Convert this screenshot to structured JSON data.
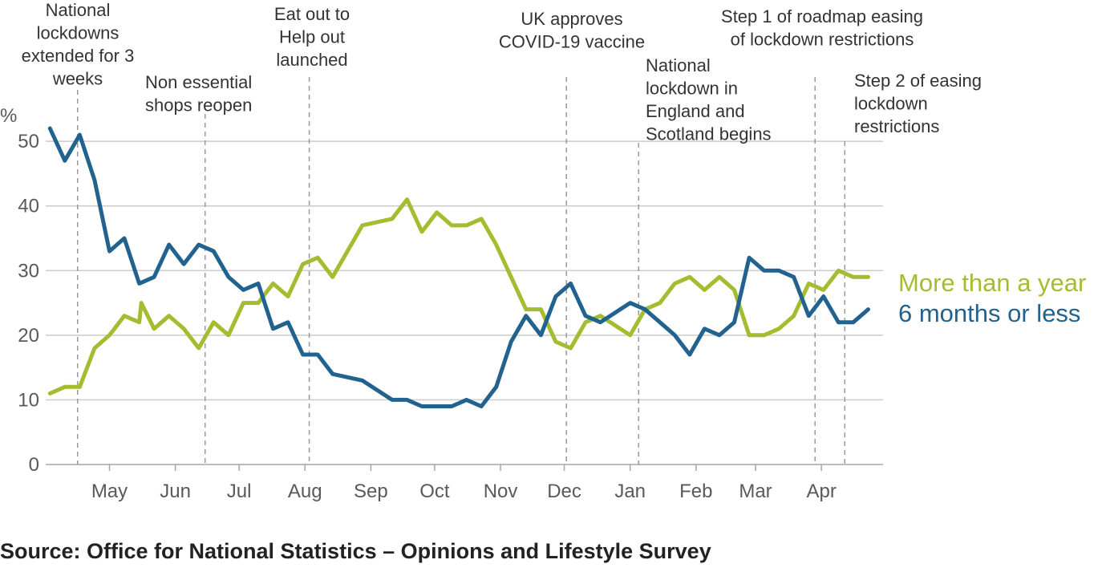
{
  "chart_data": {
    "type": "line",
    "ylabel": "%",
    "ylim": [
      0,
      52
    ],
    "y_ticks": [
      0,
      10,
      20,
      30,
      40,
      50
    ],
    "x_start": "2020-04-01",
    "x_end": "2021-04-30",
    "month_ticks": [
      {
        "label": "May",
        "date": "2020-05-01"
      },
      {
        "label": "Jun",
        "date": "2020-06-01"
      },
      {
        "label": "Jul",
        "date": "2020-07-01"
      },
      {
        "label": "Aug",
        "date": "2020-08-01"
      },
      {
        "label": "Sep",
        "date": "2020-09-01"
      },
      {
        "label": "Oct",
        "date": "2020-10-01"
      },
      {
        "label": "Nov",
        "date": "2020-11-01"
      },
      {
        "label": "Dec",
        "date": "2020-12-01"
      },
      {
        "label": "Jan",
        "date": "2021-01-01"
      },
      {
        "label": "Feb",
        "date": "2021-02-01"
      },
      {
        "label": "Mar",
        "date": "2021-03-01"
      },
      {
        "label": "Apr",
        "date": "2021-04-01"
      }
    ],
    "grid": true,
    "legend_position": "right",
    "series": [
      {
        "name": "More than a year",
        "color": "#a3bd31",
        "points": [
          [
            "2020-04-03",
            11
          ],
          [
            "2020-04-10",
            12
          ],
          [
            "2020-04-17",
            12
          ],
          [
            "2020-04-24",
            18
          ],
          [
            "2020-05-01",
            20
          ],
          [
            "2020-05-08",
            23
          ],
          [
            "2020-05-15",
            22
          ],
          [
            "2020-05-16",
            25
          ],
          [
            "2020-05-22",
            21
          ],
          [
            "2020-05-29",
            23
          ],
          [
            "2020-06-05",
            21
          ],
          [
            "2020-06-12",
            18
          ],
          [
            "2020-06-19",
            22
          ],
          [
            "2020-06-26",
            20
          ],
          [
            "2020-07-03",
            25
          ],
          [
            "2020-07-10",
            25
          ],
          [
            "2020-07-17",
            28
          ],
          [
            "2020-07-24",
            26
          ],
          [
            "2020-07-31",
            31
          ],
          [
            "2020-08-07",
            32
          ],
          [
            "2020-08-14",
            29
          ],
          [
            "2020-08-28",
            37
          ],
          [
            "2020-09-11",
            38
          ],
          [
            "2020-09-18",
            41
          ],
          [
            "2020-09-25",
            36
          ],
          [
            "2020-10-02",
            39
          ],
          [
            "2020-10-09",
            37
          ],
          [
            "2020-10-16",
            37
          ],
          [
            "2020-10-23",
            38
          ],
          [
            "2020-10-30",
            34
          ],
          [
            "2020-11-13",
            24
          ],
          [
            "2020-11-20",
            24
          ],
          [
            "2020-11-27",
            19
          ],
          [
            "2020-12-04",
            18
          ],
          [
            "2020-12-11",
            22
          ],
          [
            "2020-12-18",
            23
          ],
          [
            "2021-01-01",
            20
          ],
          [
            "2021-01-08",
            24
          ],
          [
            "2021-01-15",
            25
          ],
          [
            "2021-01-22",
            28
          ],
          [
            "2021-01-29",
            29
          ],
          [
            "2021-02-05",
            27
          ],
          [
            "2021-02-12",
            29
          ],
          [
            "2021-02-19",
            27
          ],
          [
            "2021-02-26",
            20
          ],
          [
            "2021-03-05",
            20
          ],
          [
            "2021-03-12",
            21
          ],
          [
            "2021-03-19",
            23
          ],
          [
            "2021-03-26",
            28
          ],
          [
            "2021-04-02",
            27
          ],
          [
            "2021-04-09",
            30
          ],
          [
            "2021-04-16",
            29
          ],
          [
            "2021-04-23",
            29
          ]
        ]
      },
      {
        "name": "6 months or less",
        "color": "#22628f",
        "points": [
          [
            "2020-04-03",
            52
          ],
          [
            "2020-04-10",
            47
          ],
          [
            "2020-04-17",
            51
          ],
          [
            "2020-04-24",
            44
          ],
          [
            "2020-05-01",
            33
          ],
          [
            "2020-05-08",
            35
          ],
          [
            "2020-05-15",
            28
          ],
          [
            "2020-05-22",
            29
          ],
          [
            "2020-05-29",
            34
          ],
          [
            "2020-06-05",
            31
          ],
          [
            "2020-06-12",
            34
          ],
          [
            "2020-06-19",
            33
          ],
          [
            "2020-06-26",
            29
          ],
          [
            "2020-07-03",
            27
          ],
          [
            "2020-07-10",
            28
          ],
          [
            "2020-07-17",
            21
          ],
          [
            "2020-07-24",
            22
          ],
          [
            "2020-07-31",
            17
          ],
          [
            "2020-08-07",
            17
          ],
          [
            "2020-08-14",
            14
          ],
          [
            "2020-08-28",
            13
          ],
          [
            "2020-09-11",
            10
          ],
          [
            "2020-09-18",
            10
          ],
          [
            "2020-09-25",
            9
          ],
          [
            "2020-10-09",
            9
          ],
          [
            "2020-10-16",
            10
          ],
          [
            "2020-10-23",
            9
          ],
          [
            "2020-10-30",
            12
          ],
          [
            "2020-11-06",
            19
          ],
          [
            "2020-11-13",
            23
          ],
          [
            "2020-11-20",
            20
          ],
          [
            "2020-11-27",
            26
          ],
          [
            "2020-12-04",
            28
          ],
          [
            "2020-12-11",
            23
          ],
          [
            "2020-12-18",
            22
          ],
          [
            "2021-01-01",
            25
          ],
          [
            "2021-01-08",
            24
          ],
          [
            "2021-01-15",
            22
          ],
          [
            "2021-01-22",
            20
          ],
          [
            "2021-01-29",
            17
          ],
          [
            "2021-02-05",
            21
          ],
          [
            "2021-02-12",
            20
          ],
          [
            "2021-02-19",
            22
          ],
          [
            "2021-02-26",
            32
          ],
          [
            "2021-03-05",
            30
          ],
          [
            "2021-03-12",
            30
          ],
          [
            "2021-03-19",
            29
          ],
          [
            "2021-03-26",
            23
          ],
          [
            "2021-04-02",
            26
          ],
          [
            "2021-04-09",
            22
          ],
          [
            "2021-04-16",
            22
          ],
          [
            "2021-04-23",
            24
          ]
        ]
      }
    ],
    "events": [
      {
        "date": "2020-04-16",
        "lines": [
          "National",
          "lockdowns",
          "extended for 3",
          "weeks"
        ]
      },
      {
        "date": "2020-06-15",
        "lines": [
          "Non essential",
          "shops reopen"
        ]
      },
      {
        "date": "2020-08-03",
        "lines": [
          "Eat out to",
          "Help out",
          "launched"
        ]
      },
      {
        "date": "2020-12-02",
        "lines": [
          "UK approves",
          "COVID-19 vaccine"
        ]
      },
      {
        "date": "2021-01-05",
        "lines": [
          "National",
          "lockdown in",
          "England and",
          "Scotland begins"
        ]
      },
      {
        "date": "2021-03-29",
        "lines": [
          "Step 1 of roadmap easing",
          "of lockdown restrictions"
        ]
      },
      {
        "date": "2021-04-12",
        "lines": [
          "Step 2 of easing",
          "lockdown",
          "restrictions"
        ]
      }
    ]
  },
  "source": "Source: Office for National Statistics – Opinions and Lifestyle Survey"
}
